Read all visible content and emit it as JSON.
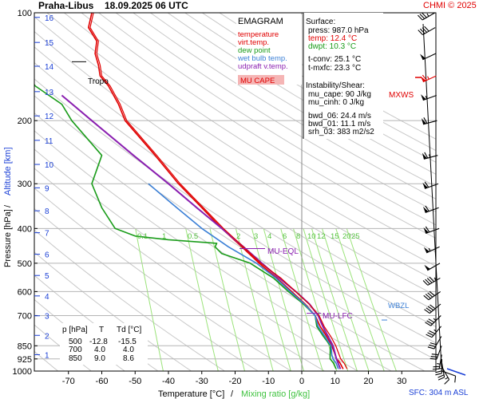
{
  "header": {
    "station": "Praha-Libus",
    "datetime": "18.09.2025 06 UTC",
    "credit": "CHMI © 2025"
  },
  "legend": {
    "title": "EMAGRAM",
    "items": [
      {
        "label": "temperature",
        "color": "#e00000"
      },
      {
        "label": "virt.temp.",
        "color": "#e00000"
      },
      {
        "label": "dew point",
        "color": "#1a9c1a"
      },
      {
        "label": "wet bulb temp.",
        "color": "#3a7fd6"
      },
      {
        "label": "udpraft v.temp.",
        "color": "#8a1fb0"
      }
    ],
    "cape_label": "MU CAPE"
  },
  "info": {
    "surface_title": "Surface:",
    "press": "press: 987.0 hPa",
    "temp": "temp: 12.4 °C",
    "dwpt": "dwpt: 10.3 °C",
    "tconv": "t-conv: 25.1 °C",
    "tmxfc": "t-mxfc: 23.3 °C",
    "instab_title": "Instability/Shear:",
    "mucape": "mu_cape: 90 J/kg",
    "mucinh": "mu_cinh: 0 J/kg",
    "bwd06": "bwd_06: 24.4 m/s",
    "bwd01": "bwd_01: 11.1 m/s",
    "srh03": "srh_03: 383 m2/s2"
  },
  "table": {
    "headers": [
      "p [hPa]",
      "T",
      "Td [°C]"
    ],
    "rows": [
      [
        "500",
        "-12.8",
        "-15.5"
      ],
      [
        "700",
        "4.0",
        "4.0"
      ],
      [
        "850",
        "9.0",
        "8.6"
      ]
    ]
  },
  "annotations": {
    "tropo": "Tropo",
    "mxws": "MXWS",
    "mu_eql": "MU-EQL",
    "mu_lfc": "MU-LFC",
    "wbzl": "WBZL"
  },
  "axes": {
    "ylabel_pressure": "Pressure [hPa]",
    "ylabel_sep": "/",
    "ylabel_altitude": "Altitude [km]",
    "xlabel_temp": "Temperature [°C]",
    "xlabel_sep": "/",
    "xlabel_mix": "Mixing ratio [g/kg]",
    "sfc": "SFC: 304 m ASL"
  },
  "colors": {
    "temperature": "#e00000",
    "dew_point": "#1a9c1a",
    "wet_bulb": "#3a7fd6",
    "updraft": "#8a1fb0",
    "mixing_ratio": "#7dd65a",
    "altitude": "#1a3fd6",
    "wind": "#000000",
    "wind_mxws": "#e00000"
  },
  "chart_data": {
    "type": "line",
    "y_scale": "log",
    "ylim": [
      1000,
      100
    ],
    "xlim": [
      -80,
      40
    ],
    "x_ticks": [
      -70,
      -60,
      -50,
      -40,
      -30,
      -20,
      -10,
      0,
      10,
      20,
      30
    ],
    "pressure_ticks": [
      100,
      200,
      300,
      400,
      500,
      600,
      700,
      850,
      925,
      1000
    ],
    "altitude_ticks_km": [
      {
        "km": 1,
        "p": 900
      },
      {
        "km": 2,
        "p": 795
      },
      {
        "km": 3,
        "p": 701
      },
      {
        "km": 4,
        "p": 617
      },
      {
        "km": 5,
        "p": 541
      },
      {
        "km": 6,
        "p": 472
      },
      {
        "km": 7,
        "p": 411
      },
      {
        "km": 8,
        "p": 357
      },
      {
        "km": 9,
        "p": 308
      },
      {
        "km": 10,
        "p": 265
      },
      {
        "km": 11,
        "p": 227
      },
      {
        "km": 12,
        "p": 194
      },
      {
        "km": 13,
        "p": 166
      },
      {
        "km": 14,
        "p": 141
      },
      {
        "km": 15,
        "p": 121
      },
      {
        "km": 16,
        "p": 103
      }
    ],
    "mixing_ratio_labels": [
      "0.1",
      "1",
      "2",
      "0.5",
      "3",
      "4",
      "6",
      "8",
      "10",
      "12",
      "15",
      "20",
      "25"
    ],
    "series": [
      {
        "name": "temperature",
        "p": [
          987,
          950,
          925,
          900,
          850,
          800,
          750,
          700,
          650,
          600,
          550,
          500,
          450,
          400,
          350,
          300,
          250,
          200,
          180,
          160,
          150,
          140,
          130,
          120,
          110,
          100
        ],
        "t": [
          12.4,
          11.5,
          10.5,
          10.0,
          9.0,
          7.5,
          5.5,
          4.0,
          1.0,
          -3.0,
          -7.5,
          -12.8,
          -18.0,
          -24.0,
          -30.0,
          -37.0,
          -44.0,
          -53.0,
          -55.0,
          -58.0,
          -60.5,
          -61.0,
          -62.0,
          -61.5,
          -64.0,
          -63.0
        ]
      },
      {
        "name": "dew point",
        "p": [
          987,
          950,
          925,
          900,
          850,
          800,
          750,
          700,
          650,
          600,
          550,
          500,
          470,
          450,
          440,
          430,
          420,
          400,
          350,
          300,
          250,
          200,
          180,
          160,
          140
        ],
        "t": [
          10.3,
          9.5,
          8.5,
          8.5,
          8.6,
          6.5,
          4.5,
          4.0,
          0.5,
          -4.0,
          -8.5,
          -15.5,
          -24.0,
          -26.0,
          -25.5,
          -40.0,
          -50.0,
          -56.0,
          -60.0,
          -63.0,
          -60.0,
          -69.0,
          -72.0,
          -80.0,
          -84.0
        ]
      },
      {
        "name": "wet bulb temp.",
        "p": [
          987,
          950,
          925,
          900,
          850,
          800,
          750,
          700,
          650,
          600,
          550,
          500,
          450,
          400,
          350,
          300
        ],
        "t": [
          11.0,
          10.3,
          9.4,
          9.0,
          8.8,
          6.9,
          4.9,
          4.0,
          0.8,
          -3.4,
          -7.8,
          -13.6,
          -22.0,
          -30.0,
          -37.5,
          -46.0
        ]
      },
      {
        "name": "udpraft v.temp.",
        "p": [
          987,
          925,
          850,
          750,
          700,
          650,
          600,
          550,
          500,
          450,
          400,
          350,
          300,
          250,
          200,
          170
        ],
        "t": [
          11.6,
          10.4,
          9.4,
          6.3,
          4.9,
          2.3,
          -1.8,
          -6.8,
          -12.0,
          -17.5,
          -24.0,
          -31.5,
          -40.0,
          -50.5,
          -63.0,
          -72.0
        ]
      }
    ],
    "wind_barbs": [
      {
        "p": 1000,
        "dir": 110,
        "speed_kt": 10
      },
      {
        "p": 975,
        "dir": 150,
        "speed_kt": 15
      },
      {
        "p": 950,
        "dir": 170,
        "speed_kt": 20
      },
      {
        "p": 925,
        "dir": 180,
        "speed_kt": 25
      },
      {
        "p": 900,
        "dir": 190,
        "speed_kt": 25
      },
      {
        "p": 850,
        "dir": 200,
        "speed_kt": 30
      },
      {
        "p": 800,
        "dir": 210,
        "speed_kt": 30
      },
      {
        "p": 750,
        "dir": 220,
        "speed_kt": 35
      },
      {
        "p": 700,
        "dir": 225,
        "speed_kt": 35
      },
      {
        "p": 650,
        "dir": 230,
        "speed_kt": 40
      },
      {
        "p": 600,
        "dir": 235,
        "speed_kt": 40
      },
      {
        "p": 550,
        "dir": 240,
        "speed_kt": 45
      },
      {
        "p": 500,
        "dir": 240,
        "speed_kt": 50
      },
      {
        "p": 450,
        "dir": 245,
        "speed_kt": 55
      },
      {
        "p": 400,
        "dir": 250,
        "speed_kt": 60
      },
      {
        "p": 350,
        "dir": 250,
        "speed_kt": 60
      },
      {
        "p": 300,
        "dir": 250,
        "speed_kt": 60
      },
      {
        "p": 250,
        "dir": 255,
        "speed_kt": 65
      },
      {
        "p": 200,
        "dir": 255,
        "speed_kt": 60
      },
      {
        "p": 170,
        "dir": 250,
        "speed_kt": 55
      },
      {
        "p": 150,
        "dir": 245,
        "speed_kt": 65,
        "mxws": true
      },
      {
        "p": 130,
        "dir": 245,
        "speed_kt": 50
      },
      {
        "p": 110,
        "dir": 240,
        "speed_kt": 40
      },
      {
        "p": 100,
        "dir": 240,
        "speed_kt": 35
      }
    ],
    "levels": {
      "tropo_p": 137,
      "mxws_p": 150,
      "mu_eql_p": 455,
      "mu_lfc_p": 690,
      "wbzl_p": 667
    }
  }
}
